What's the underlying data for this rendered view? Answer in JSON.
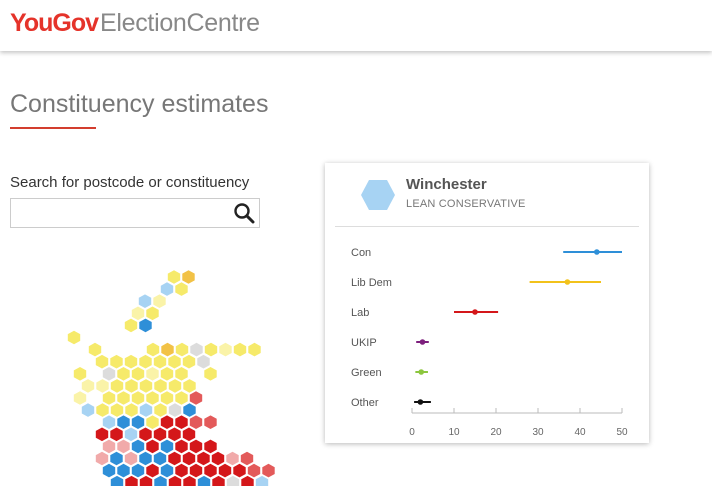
{
  "header": {
    "logo_you": "You",
    "logo_gov": "Gov",
    "logo_rest": "ElectionCentre"
  },
  "page": {
    "title": "Constituency estimates"
  },
  "search": {
    "label": "Search for postcode or constituency",
    "placeholder": "",
    "value": "",
    "icon": "search-icon"
  },
  "colors": {
    "brand_red": "#e5332a",
    "con": "#2e8fd8",
    "libdem": "#f2c21b",
    "lab": "#d4171a",
    "ukip": "#7d1f7d",
    "green": "#8cc63f",
    "other": "#111111"
  },
  "selected": {
    "name": "Winchester",
    "status": "LEAN CONSERVATIVE",
    "hex_color": "#a7d3f3"
  },
  "chart_data": {
    "type": "scatter",
    "title": "",
    "xlabel": "",
    "ylabel": "",
    "xlim": [
      0,
      50
    ],
    "xticks": [
      0,
      10,
      20,
      30,
      40,
      50
    ],
    "categories": [
      "Con",
      "Lib Dem",
      "Lab",
      "UKIP",
      "Green",
      "Other"
    ],
    "series": [
      {
        "label": "Con",
        "estimate": 44,
        "low": 36,
        "high": 50,
        "color": "#2e8fd8"
      },
      {
        "label": "Lib Dem",
        "estimate": 37,
        "low": 28,
        "high": 45,
        "color": "#f2c21b"
      },
      {
        "label": "Lab",
        "estimate": 15,
        "low": 10,
        "high": 20.5,
        "color": "#d4171a"
      },
      {
        "label": "UKIP",
        "estimate": 2.5,
        "low": 1,
        "high": 4,
        "color": "#7d1f7d"
      },
      {
        "label": "Green",
        "estimate": 2.2,
        "low": 0.8,
        "high": 3.8,
        "color": "#8cc63f"
      },
      {
        "label": "Other",
        "estimate": 2,
        "low": 0.5,
        "high": 4.5,
        "color": "#111111"
      }
    ],
    "grid": false
  },
  "map": {
    "legend_colors": {
      "Y": "#f6ea6a",
      "y": "#faf3a8",
      "o": "#f2c246",
      "g": "#dcdcdc",
      "b": "#2e8fd8",
      "l": "#a7d3f3",
      "R": "#d4171a",
      "r": "#e35a5a",
      "p": "#f1aaaa"
    }
  }
}
